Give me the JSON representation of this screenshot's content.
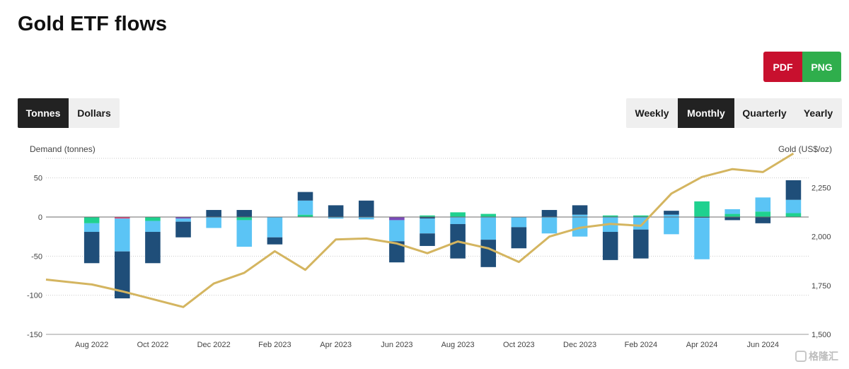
{
  "title": "Gold ETF flows",
  "export": {
    "pdf": "PDF",
    "png": "PNG"
  },
  "units": {
    "options": [
      "Tonnes",
      "Dollars"
    ],
    "selected": "Tonnes"
  },
  "frequency": {
    "options": [
      "Weekly",
      "Monthly",
      "Quarterly",
      "Yearly"
    ],
    "selected": "Monthly"
  },
  "colors": {
    "flow_dark": "#1f4e79",
    "flow_light": "#5bc4f5",
    "flow_green": "#1fd18f",
    "flow_purple": "#7b4ab8",
    "flow_pink": "#e0457b",
    "gold_line": "#d4b560"
  },
  "watermark": "格隆汇",
  "chart_data": {
    "type": "bar",
    "stacked": true,
    "ylabel": "Demand (tonnes)",
    "y2label": "Gold (US$/oz)",
    "ylim": [
      -150,
      75
    ],
    "y2lim": [
      1500,
      2400
    ],
    "yticks": [
      -150,
      -100,
      -50,
      0,
      50
    ],
    "y2ticks": [
      "1,500",
      "1,750",
      "2,000",
      "2,250"
    ],
    "y2tick_values": [
      1500,
      1750,
      2000,
      2250
    ],
    "grid": true,
    "x_tick_labels": [
      "Aug 2022",
      "Oct 2022",
      "Dec 2022",
      "Feb 2023",
      "Apr 2023",
      "Jun 2023",
      "Aug 2023",
      "Oct 2023",
      "Dec 2023",
      "Feb 2024",
      "Apr 2024",
      "Jun 2024"
    ],
    "x_tick_positions": [
      1,
      3,
      5,
      7,
      9,
      11,
      13,
      15,
      17,
      19,
      21,
      23
    ],
    "months": [
      "Jul 2022",
      "Aug 2022",
      "Sep 2022",
      "Oct 2022",
      "Nov 2022",
      "Dec 2022",
      "Jan 2023",
      "Feb 2023",
      "Mar 2023",
      "Apr 2023",
      "May 2023",
      "Jun 2023",
      "Jul 2023",
      "Aug 2023",
      "Sep 2023",
      "Oct 2023",
      "Nov 2023",
      "Dec 2023",
      "Jan 2024",
      "Feb 2024",
      "Mar 2024",
      "Apr 2024",
      "May 2024",
      "Jun 2024",
      "Jul 2024"
    ],
    "bars": [
      [],
      [
        {
          "v": -8,
          "c": "flow_green"
        },
        {
          "v": -11,
          "c": "flow_light"
        },
        {
          "v": -40,
          "c": "flow_dark"
        }
      ],
      [
        {
          "v": -2,
          "c": "flow_pink"
        },
        {
          "v": -42,
          "c": "flow_light"
        },
        {
          "v": -60,
          "c": "flow_dark"
        }
      ],
      [
        {
          "v": -5,
          "c": "flow_green"
        },
        {
          "v": -14,
          "c": "flow_light"
        },
        {
          "v": -40,
          "c": "flow_dark"
        }
      ],
      [
        {
          "v": -2,
          "c": "flow_purple"
        },
        {
          "v": -4,
          "c": "flow_light"
        },
        {
          "v": -20,
          "c": "flow_dark"
        }
      ],
      [
        {
          "v": 9,
          "c": "flow_dark"
        },
        {
          "v": -14,
          "c": "flow_light"
        }
      ],
      [
        {
          "v": 9,
          "c": "flow_dark"
        },
        {
          "v": -4,
          "c": "flow_green"
        },
        {
          "v": -34,
          "c": "flow_light"
        }
      ],
      [
        {
          "v": -26,
          "c": "flow_light"
        },
        {
          "v": -9,
          "c": "flow_dark"
        }
      ],
      [
        {
          "v": 3,
          "c": "flow_green"
        },
        {
          "v": 18,
          "c": "flow_light"
        },
        {
          "v": 11,
          "c": "flow_dark"
        }
      ],
      [
        {
          "v": 15,
          "c": "flow_dark"
        },
        {
          "v": -2,
          "c": "flow_light"
        }
      ],
      [
        {
          "v": 21,
          "c": "flow_dark"
        },
        {
          "v": -3,
          "c": "flow_light"
        }
      ],
      [
        {
          "v": -4,
          "c": "flow_purple"
        },
        {
          "v": -27,
          "c": "flow_light"
        },
        {
          "v": -27,
          "c": "flow_dark"
        }
      ],
      [
        {
          "v": 2,
          "c": "flow_green"
        },
        {
          "v": -2,
          "c": "flow_dark"
        },
        {
          "v": -19,
          "c": "flow_light"
        },
        {
          "v": -16,
          "c": "flow_dark"
        }
      ],
      [
        {
          "v": 6,
          "c": "flow_green"
        },
        {
          "v": -9,
          "c": "flow_light"
        },
        {
          "v": -44,
          "c": "flow_dark"
        }
      ],
      [
        {
          "v": 4,
          "c": "flow_green"
        },
        {
          "v": -29,
          "c": "flow_light"
        },
        {
          "v": -35,
          "c": "flow_dark"
        }
      ],
      [
        {
          "v": -13,
          "c": "flow_light"
        },
        {
          "v": -27,
          "c": "flow_dark"
        }
      ],
      [
        {
          "v": 9,
          "c": "flow_dark"
        },
        {
          "v": -21,
          "c": "flow_light"
        }
      ],
      [
        {
          "v": 3,
          "c": "flow_light"
        },
        {
          "v": 12,
          "c": "flow_dark"
        },
        {
          "v": -25,
          "c": "flow_light"
        }
      ],
      [
        {
          "v": 2,
          "c": "flow_green"
        },
        {
          "v": -19,
          "c": "flow_light"
        },
        {
          "v": -36,
          "c": "flow_dark"
        }
      ],
      [
        {
          "v": 2,
          "c": "flow_green"
        },
        {
          "v": -16,
          "c": "flow_light"
        },
        {
          "v": -37,
          "c": "flow_dark"
        }
      ],
      [
        {
          "v": 3,
          "c": "flow_light"
        },
        {
          "v": 5,
          "c": "flow_dark"
        },
        {
          "v": -22,
          "c": "flow_light"
        }
      ],
      [
        {
          "v": 20,
          "c": "flow_green"
        },
        {
          "v": -1,
          "c": "flow_dark"
        },
        {
          "v": -53,
          "c": "flow_light"
        }
      ],
      [
        {
          "v": 4,
          "c": "flow_green"
        },
        {
          "v": 6,
          "c": "flow_light"
        },
        {
          "v": -4,
          "c": "flow_dark"
        }
      ],
      [
        {
          "v": 7,
          "c": "flow_green"
        },
        {
          "v": 18,
          "c": "flow_light"
        },
        {
          "v": -8,
          "c": "flow_dark"
        }
      ],
      [
        {
          "v": 5,
          "c": "flow_green"
        },
        {
          "v": 17,
          "c": "flow_light"
        },
        {
          "v": 25,
          "c": "flow_dark"
        }
      ]
    ],
    "gold_price": [
      1780,
      1755,
      1720,
      1680,
      1640,
      1760,
      1815,
      1925,
      1830,
      1985,
      1990,
      1965,
      1915,
      1975,
      1940,
      1870,
      2000,
      2045,
      2065,
      2055,
      2220,
      2305,
      2345,
      2330,
      2425
    ]
  }
}
